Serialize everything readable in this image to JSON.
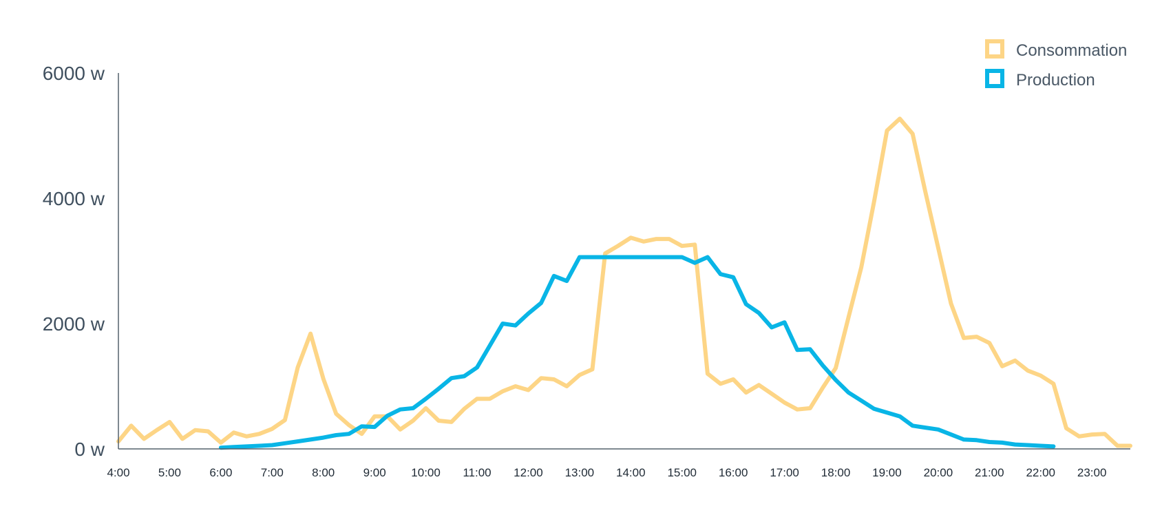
{
  "chart_data": {
    "type": "line",
    "title": "",
    "xlabel": "",
    "ylabel": "",
    "ylim": [
      0,
      6000
    ],
    "y_ticks": [
      {
        "value": 0,
        "label": "0 w"
      },
      {
        "value": 2000,
        "label": "2000 w"
      },
      {
        "value": 4000,
        "label": "4000 w"
      },
      {
        "value": 6000,
        "label": "6000 w"
      }
    ],
    "xlim": [
      4,
      23.75
    ],
    "x_ticks": [
      {
        "value": 4,
        "label": "4:00"
      },
      {
        "value": 5,
        "label": "5:00"
      },
      {
        "value": 6,
        "label": "6:00"
      },
      {
        "value": 7,
        "label": "7:00"
      },
      {
        "value": 8,
        "label": "8:00"
      },
      {
        "value": 9,
        "label": "9:00"
      },
      {
        "value": 10,
        "label": "10:00"
      },
      {
        "value": 11,
        "label": "11:00"
      },
      {
        "value": 12,
        "label": "12:00"
      },
      {
        "value": 13,
        "label": "13:00"
      },
      {
        "value": 14,
        "label": "14:00"
      },
      {
        "value": 15,
        "label": "15:00"
      },
      {
        "value": 16,
        "label": "16:00"
      },
      {
        "value": 17,
        "label": "17:00"
      },
      {
        "value": 18,
        "label": "18:00"
      },
      {
        "value": 19,
        "label": "19:00"
      },
      {
        "value": 20,
        "label": "20:00"
      },
      {
        "value": 21,
        "label": "21:00"
      },
      {
        "value": 22,
        "label": "22:00"
      },
      {
        "value": 23,
        "label": "23:00"
      }
    ],
    "grid": false,
    "legend": "top-right",
    "series": [
      {
        "name": "Consommation",
        "color": "#fdd586",
        "x": [
          4.0,
          4.25,
          4.5,
          4.75,
          5.0,
          5.25,
          5.5,
          5.75,
          6.0,
          6.25,
          6.5,
          6.75,
          7.0,
          7.25,
          7.5,
          7.75,
          8.0,
          8.25,
          8.5,
          8.75,
          9.0,
          9.25,
          9.5,
          9.75,
          10.0,
          10.25,
          10.5,
          10.75,
          11.0,
          11.25,
          11.5,
          11.75,
          12.0,
          12.25,
          12.5,
          12.75,
          13.0,
          13.25,
          13.5,
          13.75,
          14.0,
          14.25,
          14.5,
          14.75,
          15.0,
          15.25,
          15.5,
          15.75,
          16.0,
          16.25,
          16.5,
          16.75,
          17.0,
          17.25,
          17.5,
          17.75,
          18.0,
          18.25,
          18.5,
          18.75,
          19.0,
          19.25,
          19.5,
          19.75,
          20.0,
          20.25,
          20.5,
          20.75,
          21.0,
          21.25,
          21.5,
          21.75,
          22.0,
          22.25,
          22.5,
          22.75,
          23.0,
          23.25,
          23.5,
          23.75
        ],
        "values": [
          120,
          370,
          160,
          300,
          430,
          160,
          300,
          280,
          100,
          260,
          200,
          240,
          320,
          460,
          1300,
          1840,
          1120,
          560,
          380,
          240,
          520,
          520,
          310,
          450,
          650,
          450,
          430,
          640,
          800,
          800,
          920,
          1000,
          940,
          1130,
          1110,
          1000,
          1180,
          1270,
          3120,
          3240,
          3370,
          3310,
          3350,
          3350,
          3240,
          3260,
          1200,
          1040,
          1110,
          900,
          1020,
          880,
          740,
          630,
          650,
          980,
          1290,
          2100,
          2900,
          3950,
          5080,
          5270,
          5030,
          4100,
          3210,
          2320,
          1770,
          1790,
          1690,
          1320,
          1410,
          1250,
          1170,
          1040,
          330,
          200,
          230,
          240,
          50,
          50
        ],
        "stroke_width": 6
      },
      {
        "name": "Production",
        "color": "#09b5e6",
        "x": [
          6.0,
          6.25,
          6.5,
          6.75,
          7.0,
          7.25,
          7.5,
          7.75,
          8.0,
          8.25,
          8.5,
          8.75,
          9.0,
          9.25,
          9.5,
          9.75,
          10.0,
          10.25,
          10.5,
          10.75,
          11.0,
          11.25,
          11.5,
          11.75,
          12.0,
          12.25,
          12.5,
          12.75,
          13.0,
          13.25,
          13.5,
          13.75,
          14.0,
          14.25,
          14.5,
          14.75,
          15.0,
          15.25,
          15.5,
          15.75,
          16.0,
          16.25,
          16.5,
          16.75,
          17.0,
          17.25,
          17.5,
          17.75,
          18.0,
          18.25,
          18.5,
          18.75,
          19.0,
          19.25,
          19.5,
          19.75,
          20.0,
          20.25,
          20.5,
          20.75,
          21.0,
          21.25,
          21.5,
          21.75,
          22.0,
          22.25
        ],
        "values": [
          20,
          30,
          40,
          50,
          60,
          90,
          120,
          150,
          180,
          220,
          240,
          360,
          350,
          530,
          630,
          650,
          800,
          960,
          1130,
          1160,
          1300,
          1650,
          2000,
          1970,
          2160,
          2330,
          2760,
          2680,
          3060,
          3060,
          3060,
          3060,
          3060,
          3060,
          3060,
          3060,
          3060,
          2970,
          3060,
          2790,
          2740,
          2310,
          2170,
          1940,
          2020,
          1580,
          1590,
          1330,
          1100,
          900,
          770,
          640,
          580,
          520,
          370,
          340,
          310,
          230,
          150,
          140,
          110,
          100,
          70,
          60,
          50,
          40
        ],
        "stroke_width": 6
      }
    ]
  }
}
